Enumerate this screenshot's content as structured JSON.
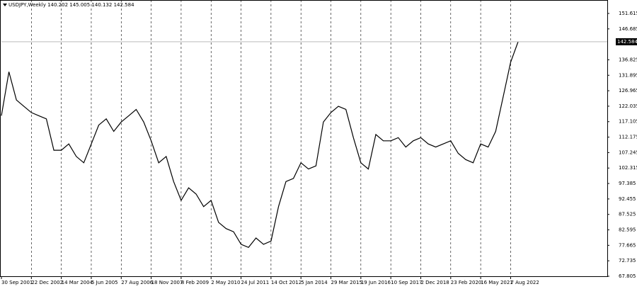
{
  "chart_data": {
    "type": "line",
    "title": "USDJPY,Weekly  140.202 145.005 140.132 142.584",
    "categories": [
      "30 Sep 2001",
      null,
      null,
      null,
      "22 Dec 2002",
      null,
      null,
      null,
      "14 Mar 2004",
      null,
      null,
      null,
      "5 Jun 2005",
      null,
      null,
      null,
      "27 Aug 2006",
      null,
      null,
      null,
      "18 Nov 2007",
      null,
      null,
      null,
      "8 Feb 2009",
      null,
      null,
      null,
      "2 May 2010",
      null,
      null,
      null,
      "24 Jul 2011",
      null,
      null,
      null,
      "14 Oct 2012",
      null,
      null,
      null,
      "5 Jan 2014",
      null,
      null,
      null,
      "29 Mar 2015",
      null,
      null,
      null,
      "19 Jun 2016",
      null,
      null,
      null,
      "10 Sep 2017",
      null,
      null,
      null,
      "2 Dec 2018",
      null,
      null,
      null,
      "23 Feb 2020",
      null,
      null,
      null,
      "16 May 2021",
      null,
      null,
      null,
      "7 Aug 2022",
      null
    ],
    "values": [
      119,
      133,
      124,
      122,
      120,
      119,
      118,
      108,
      108,
      110,
      106,
      104,
      110,
      116,
      118,
      114,
      117,
      119,
      121,
      117,
      111,
      104,
      106,
      98,
      92,
      96,
      94,
      90,
      92,
      85,
      83,
      82,
      78,
      77,
      80,
      78,
      79,
      90,
      98,
      99,
      104,
      102,
      103,
      117,
      120,
      122,
      121,
      112,
      104,
      102,
      113,
      111,
      111,
      112,
      109,
      111,
      112,
      110,
      109,
      110,
      111,
      107,
      105,
      104,
      110,
      109,
      114,
      125,
      136,
      142.584
    ],
    "color": "#000000",
    "last_price": 142.584,
    "ylim": [
      67.58,
      155.9
    ],
    "yticks": [
      67.805,
      72.735,
      77.665,
      82.595,
      87.525,
      92.455,
      97.385,
      102.315,
      107.245,
      112.175,
      117.105,
      122.035,
      126.965,
      131.895,
      136.825,
      146.685,
      151.615
    ],
    "grid": true
  }
}
